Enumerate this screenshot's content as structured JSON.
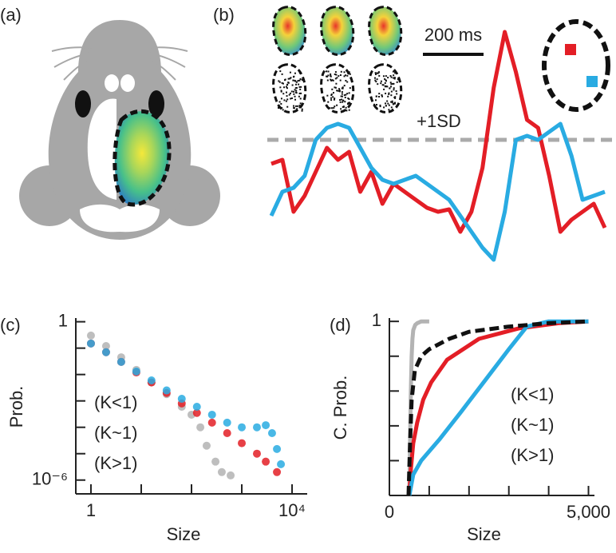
{
  "panel_a": {
    "label": "(a)"
  },
  "chart_data": [
    {
      "type": "line",
      "panel": "(b)",
      "scale_label": "200 ms",
      "threshold": {
        "value": 155,
        "label": "+1SD",
        "color": "#aaaaaa"
      },
      "ylim": [
        0,
        290
      ],
      "series": [
        {
          "color": "#e31e26",
          "values": [
            125,
            130,
            65,
            85,
            115,
            145,
            130,
            140,
            90,
            115,
            75,
            100,
            90,
            80,
            70,
            65,
            68,
            40,
            65,
            120,
            220,
            290,
            240,
            180,
            170,
            110,
            40,
            55,
            65,
            75,
            45
          ]
        },
        {
          "color": "#29abe2",
          "values": [
            60,
            90,
            95,
            110,
            155,
            170,
            175,
            170,
            145,
            120,
            105,
            100,
            105,
            110,
            100,
            90,
            80,
            60,
            40,
            20,
            5,
            65,
            155,
            160,
            155,
            165,
            175,
            135,
            80,
            85,
            90
          ]
        }
      ]
    },
    {
      "type": "scatter",
      "panel": "(c)",
      "x_label": "Size",
      "y_label": "Prob.",
      "log_x": true,
      "log_y": true,
      "xlim": [
        0.5,
        20000
      ],
      "ylim": [
        3e-07,
        1.2
      ],
      "xticks": [
        1,
        {
          "value": 10000,
          "label": "10⁴"
        }
      ],
      "yticks": [
        1,
        {
          "value": 1e-06,
          "label": "10⁻⁶"
        }
      ],
      "minor_xticks": [
        10,
        100,
        1000
      ],
      "minor_yticks": [
        0.1,
        0.01,
        0.001,
        0.0001,
        1e-05
      ],
      "series": [
        {
          "name": "(K<1)",
          "color": "#b3b3b3",
          "x": [
            1,
            2,
            4,
            8,
            16,
            32,
            64,
            100,
            150,
            200,
            300,
            400,
            600
          ],
          "y": [
            0.3,
            0.12,
            0.045,
            0.015,
            0.005,
            0.0018,
            0.0006,
            0.0003,
            0.0001,
            2e-05,
            5e-06,
            2e-06,
            1.5e-06
          ]
        },
        {
          "name": "(K~1)",
          "color": "#e31e26",
          "x": [
            1,
            2,
            4,
            8,
            16,
            32,
            64,
            128,
            256,
            512,
            1000,
            2000,
            3000,
            5000
          ],
          "y": [
            0.15,
            0.07,
            0.03,
            0.012,
            0.005,
            0.002,
            0.0008,
            0.00035,
            0.00015,
            6e-05,
            2.5e-05,
            1e-05,
            5e-06,
            2e-06
          ]
        },
        {
          "name": "(K>1)",
          "color": "#29abe2",
          "x": [
            1,
            2,
            4,
            8,
            16,
            32,
            64,
            128,
            256,
            512,
            1000,
            2000,
            3000,
            4000,
            5000,
            6000
          ],
          "y": [
            0.15,
            0.07,
            0.03,
            0.013,
            0.006,
            0.0025,
            0.0012,
            0.0006,
            0.0003,
            0.00015,
            0.0001,
            0.0001,
            0.00012,
            6e-05,
            1.5e-05,
            4e-06
          ]
        }
      ]
    },
    {
      "type": "line",
      "panel": "(d)",
      "x_label": "Size",
      "y_label": "C. Prob.",
      "xlim": [
        0,
        5150
      ],
      "ylim": [
        0,
        1.01
      ],
      "xticks": [
        0,
        {
          "value": 5000,
          "label": "5,000"
        }
      ],
      "yticks": [
        1
      ],
      "minor_xticks": [
        1000,
        2000,
        3000,
        4000
      ],
      "minor_yticks": [
        0.2,
        0.4,
        0.6,
        0.8
      ],
      "series": [
        {
          "name": "(K<1)",
          "color": "#b3b3b3",
          "x": [
            500,
            520,
            540,
            560,
            580,
            600,
            650,
            700,
            800,
            1000
          ],
          "values": [
            0,
            0.3,
            0.6,
            0.8,
            0.9,
            0.95,
            0.98,
            0.99,
            1,
            1
          ]
        },
        {
          "name": "(K~1)",
          "color": "#e31e26",
          "x": [
            500,
            540,
            600,
            700,
            850,
            1050,
            1450,
            2250,
            3250,
            4250,
            5000
          ],
          "values": [
            0,
            0.15,
            0.3,
            0.42,
            0.55,
            0.65,
            0.78,
            0.9,
            0.96,
            0.99,
            1
          ]
        },
        {
          "name": "(K>1)",
          "color": "#29abe2",
          "x": [
            500,
            600,
            800,
            1250,
            1800,
            2400,
            3000,
            3450,
            4000,
            5000
          ],
          "values": [
            0,
            0.12,
            0.2,
            0.32,
            0.48,
            0.66,
            0.84,
            0.97,
            1,
            1
          ]
        },
        {
          "color": "#111111",
          "dash": true,
          "x": [
            480,
            520,
            560,
            640,
            800,
            1000,
            1500,
            2000,
            3000,
            4000,
            5000
          ],
          "values": [
            0,
            0.3,
            0.55,
            0.72,
            0.8,
            0.84,
            0.9,
            0.94,
            0.97,
            0.99,
            1
          ]
        }
      ]
    }
  ]
}
